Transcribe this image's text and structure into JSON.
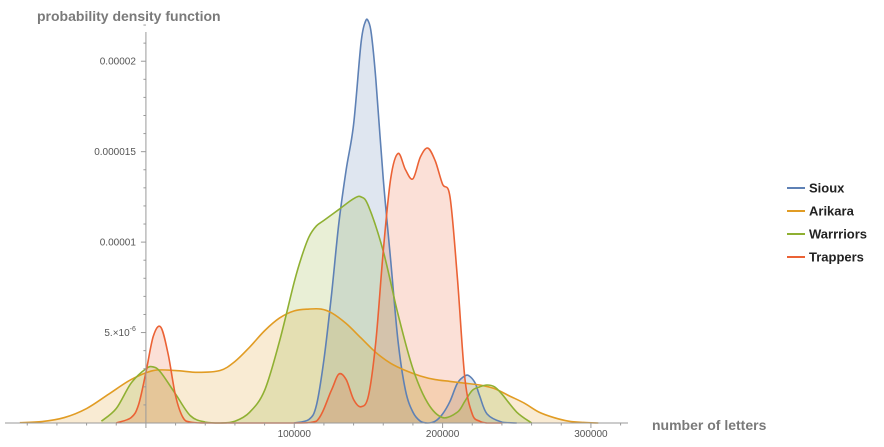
{
  "chart_data": {
    "type": "area",
    "title": "",
    "xlabel": "number of letters",
    "ylabel": "probability density function",
    "xlim": [
      -95000,
      325000
    ],
    "ylim": [
      0,
      2.25e-05
    ],
    "x_ticks": [
      {
        "value": 100000,
        "label": "100000"
      },
      {
        "value": 200000,
        "label": "200000"
      },
      {
        "value": 300000,
        "label": "300000"
      }
    ],
    "y_ticks": [
      {
        "value": 5e-06,
        "label": "5.×10",
        "exp": "-6"
      },
      {
        "value": 1e-05,
        "label": "0.00001"
      },
      {
        "value": 1.5e-05,
        "label": "0.000015"
      },
      {
        "value": 2e-05,
        "label": "0.00002"
      }
    ],
    "x_minor_step": 20000,
    "y_minor_step": 1e-06,
    "legend": "right",
    "grid": false,
    "series": [
      {
        "name": "Sioux",
        "color": "#5e81b5",
        "x": [
          100000,
          110000,
          115000,
          120000,
          125000,
          130000,
          135000,
          140000,
          145000,
          148000,
          150000,
          152000,
          155000,
          160000,
          165000,
          170000,
          175000,
          180000,
          185000,
          190000,
          195000,
          200000,
          205000,
          210000,
          215000,
          218000,
          222000,
          225000,
          230000,
          240000,
          250000
        ],
        "y": [
          0,
          2e-07,
          1e-06,
          3.5e-06,
          7e-06,
          1.1e-05,
          1.4e-05,
          1.65e-05,
          2.1e-05,
          2.22e-05,
          2.22e-05,
          2.15e-05,
          1.9e-05,
          1.35e-05,
          9e-06,
          4.5e-06,
          1.8e-06,
          6e-07,
          1e-07,
          0,
          1e-07,
          5e-07,
          1.2e-06,
          2.2e-06,
          2.6e-06,
          2.6e-06,
          2.2e-06,
          1.5e-06,
          5e-07,
          5e-08,
          0
        ]
      },
      {
        "name": "Arikara",
        "color": "#e19c24",
        "x": [
          -85000,
          -70000,
          -55000,
          -40000,
          -25000,
          -10000,
          5000,
          20000,
          35000,
          50000,
          60000,
          70000,
          80000,
          90000,
          100000,
          110000,
          118000,
          125000,
          135000,
          145000,
          155000,
          165000,
          175000,
          185000,
          195000,
          205000,
          215000,
          225000,
          235000,
          245000,
          255000,
          265000,
          275000,
          285000,
          295000,
          305000
        ],
        "y": [
          2e-08,
          8e-08,
          3e-07,
          8e-07,
          1.6e-06,
          2.4e-06,
          2.9e-06,
          2.9e-06,
          2.8e-06,
          2.9e-06,
          3.4e-06,
          4.2e-06,
          5.1e-06,
          5.8e-06,
          6.2e-06,
          6.3e-06,
          6.3e-06,
          6.1e-06,
          5.5e-06,
          4.7e-06,
          3.9e-06,
          3.3e-06,
          2.9e-06,
          2.6e-06,
          2.4e-06,
          2.3e-06,
          2.2e-06,
          2.1e-06,
          1.9e-06,
          1.5e-06,
          1.1e-06,
          6e-07,
          3e-07,
          1e-07,
          3e-08,
          0
        ]
      },
      {
        "name": "Warrriors",
        "color": "#8fb032",
        "x": [
          -30000,
          -20000,
          -10000,
          0,
          5000,
          10000,
          20000,
          30000,
          40000,
          50000,
          60000,
          70000,
          80000,
          90000,
          100000,
          105000,
          110000,
          115000,
          120000,
          130000,
          140000,
          145000,
          150000,
          160000,
          170000,
          180000,
          190000,
          200000,
          210000,
          215000,
          220000,
          225000,
          230000,
          235000,
          240000,
          250000,
          260000
        ],
        "y": [
          1e-07,
          8e-07,
          2.2e-06,
          3e-06,
          3.1e-06,
          2.8e-06,
          1.6e-06,
          4e-07,
          5e-08,
          0,
          1e-07,
          6e-07,
          1.8e-06,
          4.5e-06,
          7.8e-06,
          9.2e-06,
          1.03e-05,
          1.09e-05,
          1.12e-05,
          1.18e-05,
          1.24e-05,
          1.25e-05,
          1.2e-05,
          9.5e-06,
          6e-06,
          3e-06,
          1.1e-06,
          3e-07,
          6e-07,
          1.2e-06,
          1.8e-06,
          2e-06,
          2.1e-06,
          2e-06,
          1.6e-06,
          6e-07,
          0
        ]
      },
      {
        "name": "Trappers",
        "color": "#eb6235",
        "x": [
          -20000,
          -10000,
          -5000,
          0,
          5000,
          10000,
          15000,
          20000,
          25000,
          30000,
          40000,
          50000,
          100000,
          115000,
          125000,
          130000,
          135000,
          140000,
          145000,
          150000,
          155000,
          160000,
          165000,
          170000,
          175000,
          180000,
          185000,
          190000,
          195000,
          200000,
          205000,
          210000,
          215000,
          220000,
          225000,
          230000,
          240000
        ],
        "y": [
          0,
          3e-07,
          1e-06,
          2.8e-06,
          4.8e-06,
          5.3e-06,
          3.8e-06,
          1.5e-06,
          3e-07,
          5e-08,
          0,
          0,
          0,
          1e-07,
          1.8e-06,
          2.7e-06,
          2.4e-06,
          1.3e-06,
          9e-07,
          1.5e-06,
          4.5e-06,
          9.5e-06,
          1.35e-05,
          1.49e-05,
          1.4e-05,
          1.35e-05,
          1.47e-05,
          1.52e-05,
          1.45e-05,
          1.32e-05,
          1.25e-05,
          8e-06,
          2.5e-06,
          5e-07,
          1e-07,
          0,
          0
        ]
      }
    ]
  }
}
